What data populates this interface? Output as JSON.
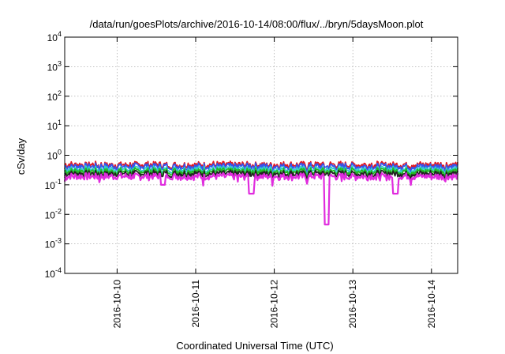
{
  "chart_data": {
    "type": "line",
    "title": "/data/run/goesPlots/archive/2016-10-14/08:00/flux/../bryn/5daysMoon.plot",
    "xlabel": "Coordinated Universal Time (UTC)",
    "ylabel": "cSv/day",
    "y_scale": "log",
    "ylim": [
      0.0001,
      10000
    ],
    "y_ticks": [
      {
        "value": 0.0001,
        "base": "10",
        "exp": "-4"
      },
      {
        "value": 0.001,
        "base": "10",
        "exp": "-3"
      },
      {
        "value": 0.01,
        "base": "10",
        "exp": "-2"
      },
      {
        "value": 0.1,
        "base": "10",
        "exp": "-1"
      },
      {
        "value": 1,
        "base": "10",
        "exp": "0"
      },
      {
        "value": 10,
        "base": "10",
        "exp": "1"
      },
      {
        "value": 100,
        "base": "10",
        "exp": "2"
      },
      {
        "value": 1000,
        "base": "10",
        "exp": "3"
      },
      {
        "value": 10000,
        "base": "10",
        "exp": "4"
      }
    ],
    "xlim": [
      "2016-10-09T08:00",
      "2016-10-14T08:00"
    ],
    "x_ticks": [
      {
        "value": "2016-10-10T00:00",
        "label": "2016-10-10"
      },
      {
        "value": "2016-10-11T00:00",
        "label": "2016-10-11"
      },
      {
        "value": "2016-10-12T00:00",
        "label": "2016-10-12"
      },
      {
        "value": "2016-10-13T00:00",
        "label": "2016-10-13"
      },
      {
        "value": "2016-10-14T00:00",
        "label": "2016-10-14"
      }
    ],
    "grid": true,
    "legend": "none",
    "series": [
      {
        "color": "#e3171f",
        "base": 0.5,
        "dips": [
          {
            "at": "2016-10-12T16:00",
            "value": 0.25
          }
        ]
      },
      {
        "color": "#3355ee",
        "base": 0.44,
        "dips": []
      },
      {
        "color": "#33cccc",
        "base": 0.35,
        "dips": []
      },
      {
        "color": "#22bb22",
        "base": 0.3,
        "dips": []
      },
      {
        "color": "#222222",
        "base": 0.25,
        "dips": []
      },
      {
        "color": "#e02cde",
        "base": 0.2,
        "dips": [
          {
            "at": "2016-10-10T14:00",
            "value": 0.1
          },
          {
            "at": "2016-10-11T17:00",
            "value": 0.05
          },
          {
            "at": "2016-10-12T16:00",
            "value": 0.0045
          },
          {
            "at": "2016-10-13T13:00",
            "value": 0.05
          }
        ]
      }
    ]
  }
}
